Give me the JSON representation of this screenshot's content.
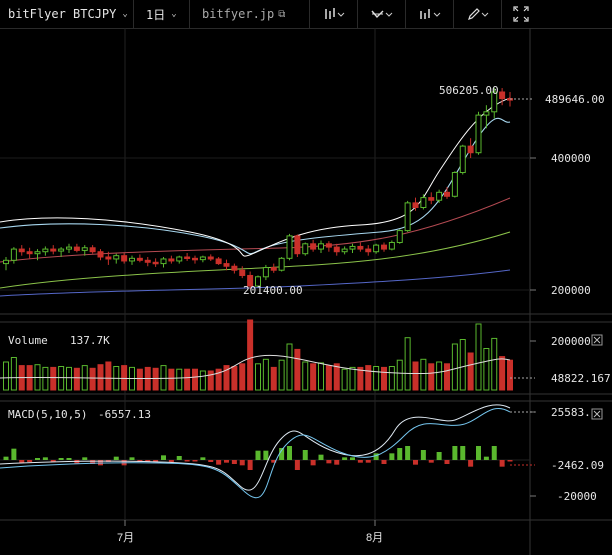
{
  "toolbar": {
    "symbol": "bitFlyer BTCJPY",
    "interval": "1日",
    "domain": "bitfyer.jp",
    "icons": [
      "indicators-icon",
      "drawing-tools-icon",
      "chart-type-icon",
      "pencil-icon",
      "fullscreen-icon"
    ]
  },
  "price_panel": {
    "high_label": "506205.00",
    "low_label": "201400.00",
    "current_price": "489646.00",
    "ticks": [
      "400000",
      "200000"
    ]
  },
  "volume_panel": {
    "legend_name": "Volume",
    "legend_value": "137.7K",
    "ticks": [
      "200000"
    ],
    "current": "48822.167"
  },
  "macd_panel": {
    "legend_name": "MACD(5,10,5)",
    "legend_value": "-6557.13",
    "ticks": [
      "-20000"
    ],
    "upper_marker": "25583.",
    "lower_marker": "-2462.09"
  },
  "time_axis": [
    "7月",
    "8月"
  ],
  "colors": {
    "up": "#5ab82e",
    "down": "#c9302a",
    "ma_fast": "#ffffff",
    "ma_mid": "#a8d8f0",
    "ma_slow1": "#b44a52",
    "ma_slow2": "#8bc34a",
    "ma_slow3": "#5567c8"
  },
  "chart_data": {
    "type": "candlestick",
    "series_points": [
      [
        240000,
        250000,
        230000,
        245000
      ],
      [
        245000,
        265000,
        240000,
        262000
      ],
      [
        262000,
        268000,
        252000,
        258000
      ],
      [
        258000,
        264000,
        248000,
        255000
      ],
      [
        255000,
        262000,
        245000,
        258000
      ],
      [
        258000,
        266000,
        252000,
        262000
      ],
      [
        262000,
        268000,
        254000,
        259000
      ],
      [
        259000,
        265000,
        250000,
        262000
      ],
      [
        262000,
        270000,
        256000,
        265000
      ],
      [
        265000,
        270000,
        257000,
        260000
      ],
      [
        260000,
        268000,
        252000,
        264000
      ],
      [
        264000,
        268000,
        255000,
        258000
      ],
      [
        258000,
        262000,
        245000,
        250000
      ],
      [
        250000,
        258000,
        238000,
        247000
      ],
      [
        247000,
        255000,
        240000,
        252000
      ],
      [
        252000,
        256000,
        240000,
        244000
      ],
      [
        244000,
        252000,
        238000,
        248000
      ],
      [
        248000,
        254000,
        242000,
        245000
      ],
      [
        245000,
        250000,
        236000,
        242000
      ],
      [
        242000,
        248000,
        235000,
        240000
      ],
      [
        240000,
        250000,
        234000,
        247000
      ],
      [
        247000,
        252000,
        240000,
        244000
      ],
      [
        244000,
        252000,
        240000,
        250000
      ],
      [
        250000,
        256000,
        244000,
        248000
      ],
      [
        248000,
        252000,
        240000,
        246000
      ],
      [
        246000,
        252000,
        242000,
        250000
      ],
      [
        250000,
        254000,
        244000,
        247000
      ],
      [
        247000,
        250000,
        238000,
        240000
      ],
      [
        240000,
        246000,
        230000,
        236000
      ],
      [
        236000,
        240000,
        225000,
        230000
      ],
      [
        230000,
        236000,
        218000,
        222000
      ],
      [
        222000,
        228000,
        201400,
        206000
      ],
      [
        206000,
        222000,
        204000,
        220000
      ],
      [
        220000,
        238000,
        215000,
        234000
      ],
      [
        234000,
        240000,
        226000,
        230000
      ],
      [
        230000,
        250000,
        228000,
        248000
      ],
      [
        248000,
        285000,
        245000,
        282000
      ],
      [
        282000,
        284000,
        250000,
        255000
      ],
      [
        255000,
        272000,
        252000,
        270000
      ],
      [
        270000,
        276000,
        258000,
        262000
      ],
      [
        262000,
        275000,
        256000,
        270000
      ],
      [
        270000,
        274000,
        258000,
        265000
      ],
      [
        265000,
        270000,
        252000,
        258000
      ],
      [
        258000,
        266000,
        254000,
        262000
      ],
      [
        262000,
        270000,
        256000,
        266000
      ],
      [
        266000,
        272000,
        258000,
        262000
      ],
      [
        262000,
        268000,
        252000,
        258000
      ],
      [
        258000,
        270000,
        255000,
        268000
      ],
      [
        268000,
        272000,
        258000,
        262000
      ],
      [
        262000,
        275000,
        260000,
        272000
      ],
      [
        272000,
        292000,
        270000,
        290000
      ],
      [
        290000,
        335000,
        288000,
        332000
      ],
      [
        332000,
        340000,
        320000,
        325000
      ],
      [
        325000,
        345000,
        322000,
        340000
      ],
      [
        340000,
        348000,
        330000,
        336000
      ],
      [
        336000,
        352000,
        332000,
        348000
      ],
      [
        348000,
        356000,
        338000,
        342000
      ],
      [
        342000,
        380000,
        340000,
        378000
      ],
      [
        378000,
        420000,
        375000,
        418000
      ],
      [
        418000,
        430000,
        400000,
        408000
      ],
      [
        408000,
        470000,
        405000,
        465000
      ],
      [
        465000,
        480000,
        445000,
        470000
      ],
      [
        470000,
        506205,
        460000,
        500000
      ],
      [
        500000,
        506000,
        480000,
        490000
      ],
      [
        490000,
        500000,
        478000,
        489646
      ]
    ],
    "legend": [
      "Volume 137.7K",
      "MACD(5,10,5) -6557.13"
    ],
    "y_ticks": [
      "400000",
      "200000"
    ],
    "x_ticks": [
      "7月",
      "8月"
    ]
  }
}
